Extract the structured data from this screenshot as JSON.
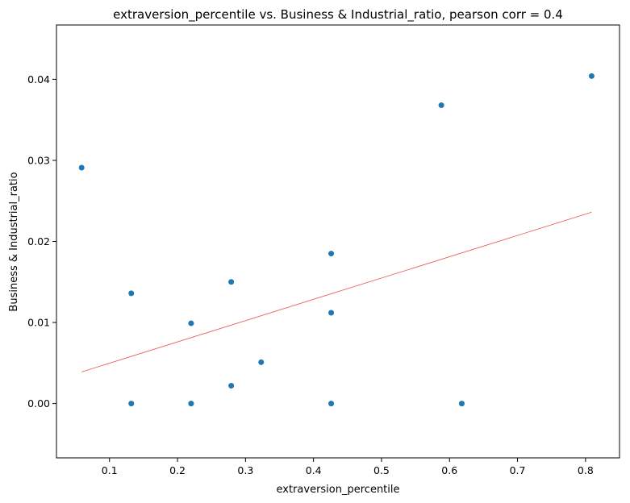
{
  "chart_data": {
    "type": "scatter",
    "title": "extraversion_percentile vs. Business & Industrial_ratio, pearson corr = 0.4",
    "xlabel": "extraversion_percentile",
    "ylabel": "Business & Industrial_ratio",
    "xlim": [
      0.022,
      0.85
    ],
    "ylim": [
      -0.0067,
      0.0467
    ],
    "xticks": [
      "0.1",
      "0.2",
      "0.3",
      "0.4",
      "0.5",
      "0.6",
      "0.7",
      "0.8"
    ],
    "xtick_values": [
      0.1,
      0.2,
      0.3,
      0.4,
      0.5,
      0.6,
      0.7,
      0.8
    ],
    "yticks": [
      "0.00",
      "0.01",
      "0.02",
      "0.03",
      "0.04"
    ],
    "ytick_values": [
      0.0,
      0.01,
      0.02,
      0.03,
      0.04
    ],
    "grid": false,
    "point_color": "#1f77b4",
    "trend_color": "#e8524a",
    "points": [
      {
        "x": 0.059,
        "y": 0.0291
      },
      {
        "x": 0.132,
        "y": 0.0136
      },
      {
        "x": 0.132,
        "y": 0.0
      },
      {
        "x": 0.22,
        "y": 0.0099
      },
      {
        "x": 0.22,
        "y": 0.0
      },
      {
        "x": 0.279,
        "y": 0.015
      },
      {
        "x": 0.279,
        "y": 0.0022
      },
      {
        "x": 0.323,
        "y": 0.0051
      },
      {
        "x": 0.426,
        "y": 0.0185
      },
      {
        "x": 0.426,
        "y": 0.0112
      },
      {
        "x": 0.426,
        "y": 0.0
      },
      {
        "x": 0.588,
        "y": 0.0368
      },
      {
        "x": 0.618,
        "y": 0.0
      },
      {
        "x": 0.809,
        "y": 0.0404
      }
    ],
    "trendline": {
      "x": [
        0.059,
        0.809
      ],
      "y": [
        0.0039,
        0.0236
      ]
    }
  }
}
